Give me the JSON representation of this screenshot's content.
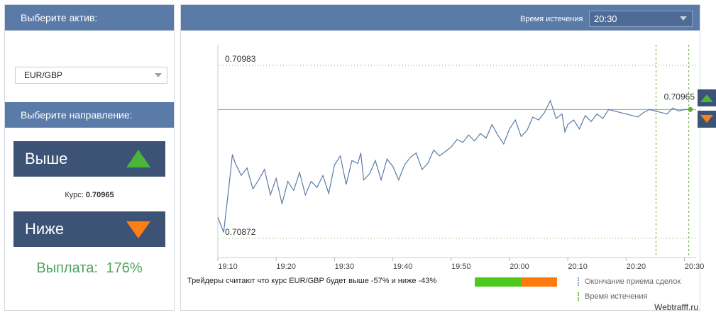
{
  "left_panel": {
    "asset_header": "Выберите актив:",
    "asset_value": "EUR/GBP",
    "direction_header": "Выберите направление:",
    "up_label": "Выше",
    "down_label": "Ниже",
    "rate_label": "Курс:",
    "rate_value": "0.70965",
    "payout_label": "Выплата:",
    "payout_value": "176%"
  },
  "right_panel": {
    "expiry_label": "Время истечения",
    "expiry_value": "20:30",
    "traders_text": "Трейдеры считают что курс EUR/GBP будет выше -57% и ниже -43%",
    "sentiment": {
      "up_pct": 57,
      "down_pct": 43,
      "up_color": "#4fc81d",
      "down_color": "#ff7a0c"
    },
    "legend": {
      "close_label": "Окончание приема сделок",
      "expiry_label": "Время истечения"
    }
  },
  "watermark": "Webtrafff.ru",
  "icons": {
    "up": "triangle-up-icon",
    "down": "triangle-down-icon",
    "caret": "chevron-down-icon"
  },
  "colors": {
    "header_bg": "#5a7ba8",
    "button_bg": "#3c5376",
    "green": "#4bb53a",
    "orange": "#ff7e16",
    "payout": "#4ca45c",
    "line": "#5b7ba6"
  },
  "chart_data": {
    "type": "line",
    "x_ticks": [
      "19:10",
      "19:20",
      "19:30",
      "19:40",
      "19:50",
      "20:00",
      "20:10",
      "20:20",
      "20:30"
    ],
    "xlim_minutes": [
      0,
      82
    ],
    "ylim": [
      0.7087,
      0.70995
    ],
    "levels": [
      {
        "label": "0.70983",
        "value": 0.70983
      },
      {
        "label": "0.70872",
        "value": 0.70872
      },
      {
        "label": "0.70965",
        "value": 0.70965,
        "current": true
      }
    ],
    "vlines_minutes": [
      {
        "minute": 75,
        "kind": "close-of-trading"
      },
      {
        "minute": 80.5,
        "kind": "expiry"
      }
    ],
    "series": [
      {
        "x": [
          0,
          1,
          2,
          2.5,
          3,
          4,
          5,
          6,
          7,
          8,
          9,
          10,
          11,
          12,
          13,
          14,
          15,
          16,
          17,
          18,
          19,
          20,
          21,
          22,
          23,
          24,
          24.5,
          25,
          26,
          27,
          28,
          29,
          30,
          31,
          32,
          33,
          34,
          35,
          36,
          37,
          38,
          39,
          40,
          41,
          42,
          43,
          44,
          45,
          46,
          47,
          48,
          49,
          50,
          51,
          52,
          53,
          54,
          55,
          56,
          57,
          58,
          59,
          59.5,
          60,
          61,
          62,
          63,
          64,
          65,
          66,
          67,
          68,
          69,
          70,
          71,
          72,
          73,
          74,
          75,
          76,
          77,
          78,
          78.5,
          79,
          80,
          81
        ],
        "y": [
          0.70893,
          0.70883,
          0.70917,
          0.70935,
          0.70929,
          0.70921,
          0.70926,
          0.70912,
          0.70918,
          0.70925,
          0.70908,
          0.70919,
          0.70902,
          0.70917,
          0.70911,
          0.70923,
          0.70908,
          0.70917,
          0.70913,
          0.70921,
          0.70909,
          0.70928,
          0.70934,
          0.70915,
          0.70931,
          0.70929,
          0.70936,
          0.70918,
          0.70922,
          0.70931,
          0.70918,
          0.70932,
          0.70927,
          0.70918,
          0.70928,
          0.70933,
          0.70936,
          0.70925,
          0.70929,
          0.70938,
          0.70934,
          0.70937,
          0.7094,
          0.70945,
          0.70943,
          0.70948,
          0.70944,
          0.70949,
          0.70946,
          0.70955,
          0.70948,
          0.70942,
          0.70952,
          0.70958,
          0.70947,
          0.70951,
          0.7096,
          0.70958,
          0.70963,
          0.70971,
          0.70959,
          0.70962,
          0.7095,
          0.70955,
          0.70958,
          0.70952,
          0.70961,
          0.70957,
          0.70962,
          0.70959,
          0.70965,
          0.70964,
          0.70963,
          0.70962,
          0.70961,
          0.7096,
          0.70963,
          0.70965,
          0.70964,
          0.70963,
          0.70962,
          0.70966,
          0.70965,
          0.70964,
          0.70965,
          0.70965
        ]
      }
    ]
  }
}
